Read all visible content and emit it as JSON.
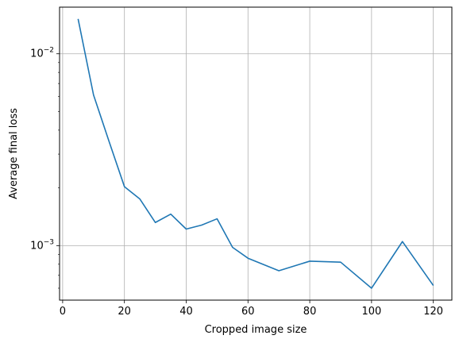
{
  "chart_data": {
    "type": "line",
    "title": "",
    "xlabel": "Cropped image size",
    "ylabel": "Average final loss",
    "xlim": [
      -1,
      126
    ],
    "ylim": [
      0.00052,
      0.0175
    ],
    "yscale": "log",
    "grid": true,
    "x_ticks": [
      0,
      20,
      40,
      60,
      80,
      100,
      120
    ],
    "x_tick_labels": [
      "0",
      "20",
      "40",
      "60",
      "80",
      "100",
      "120"
    ],
    "y_major_ticks": [
      0.001,
      0.01
    ],
    "y_tick_labels": [
      "10^-3",
      "10^-2"
    ],
    "series": [
      {
        "color": "#1f77b4",
        "x": [
          5,
          10,
          15,
          20,
          25,
          30,
          35,
          40,
          45,
          50,
          55,
          60,
          70,
          80,
          90,
          100,
          110,
          120
        ],
        "y": [
          0.0152,
          0.0061,
          0.0035,
          0.00203,
          0.00175,
          0.00132,
          0.00146,
          0.00122,
          0.00128,
          0.00138,
          0.00098,
          0.00086,
          0.00074,
          0.00083,
          0.00082,
          0.0006,
          0.00105,
          0.00062
        ]
      }
    ]
  }
}
